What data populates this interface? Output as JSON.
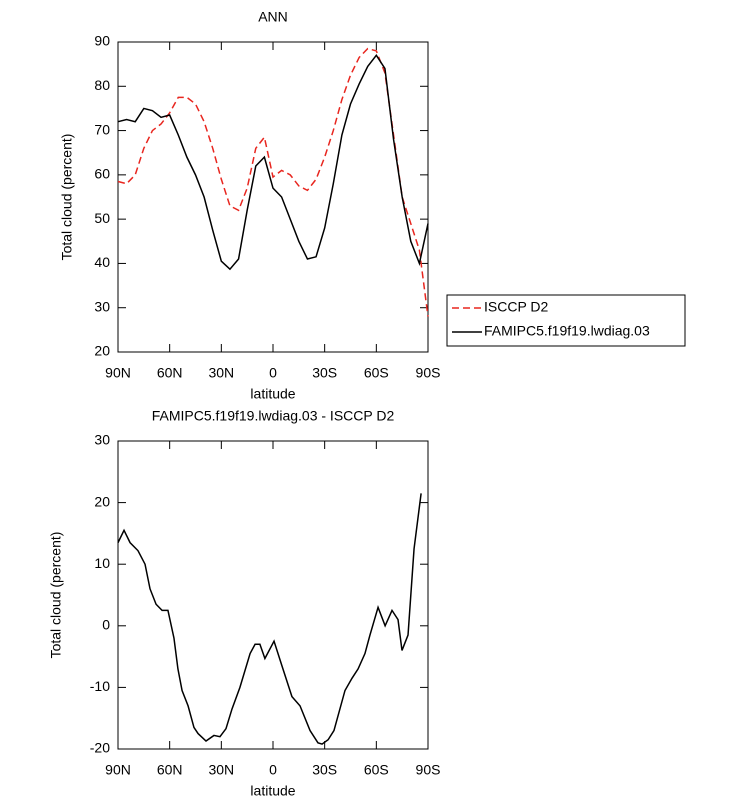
{
  "chart_data": [
    {
      "type": "line",
      "title": "ANN",
      "x_label": "latitude",
      "y_label": "Total cloud (percent)",
      "xlim": [
        90,
        -90
      ],
      "xticks": [
        {
          "value": 90,
          "label": "90N"
        },
        {
          "value": 60,
          "label": "60N"
        },
        {
          "value": 30,
          "label": "30N"
        },
        0,
        {
          "value": -30,
          "label": "30S"
        },
        {
          "value": -60,
          "label": "60S"
        },
        {
          "value": -90,
          "label": "90S"
        }
      ],
      "ylim": [
        20,
        90
      ],
      "yticks": [
        20,
        30,
        40,
        50,
        60,
        70,
        80,
        90
      ],
      "legend": "right",
      "x": [
        90,
        85,
        80,
        75,
        70,
        65,
        60,
        55,
        50,
        45,
        40,
        35,
        30,
        25,
        20,
        15,
        10,
        5,
        0,
        -5,
        -10,
        -15,
        -20,
        -25,
        -30,
        -35,
        -40,
        -45,
        -50,
        -55,
        -60,
        -65,
        -70,
        -75,
        -80,
        -85,
        -90
      ],
      "series": [
        {
          "name": "ISCCP D2",
          "color": "#e8261f",
          "style": "dashed",
          "values": [
            58.5,
            58,
            60,
            66,
            70,
            71.5,
            74,
            77.5,
            77.5,
            76,
            72,
            66,
            59,
            53,
            52,
            57,
            66,
            68.5,
            59.5,
            61,
            60,
            57.5,
            56.5,
            59,
            64,
            70,
            77,
            82.5,
            86.5,
            88.5,
            88,
            83,
            69,
            55,
            49,
            43,
            28
          ]
        },
        {
          "name": "FAMIPC5.f19f19.lwdiag.03",
          "color": "#000000",
          "style": "solid",
          "values": [
            72,
            72.5,
            72,
            75,
            74.5,
            73,
            73.5,
            69,
            64,
            60,
            55,
            47.5,
            40.5,
            38.7,
            41,
            52,
            62,
            64,
            57,
            55,
            50,
            45,
            41,
            41.5,
            48,
            58,
            69,
            76,
            80.5,
            84.5,
            87,
            84,
            68,
            55,
            45,
            40,
            49
          ]
        }
      ]
    },
    {
      "type": "line",
      "title": "FAMIPC5.f19f19.lwdiag.03 - ISCCP D2",
      "x_label": "latitude",
      "y_label": "Total cloud (percent)",
      "xlim": [
        90,
        -90
      ],
      "xticks": [
        {
          "value": 90,
          "label": "90N"
        },
        {
          "value": 60,
          "label": "60N"
        },
        {
          "value": 30,
          "label": "30N"
        },
        0,
        {
          "value": -30,
          "label": "30S"
        },
        {
          "value": -60,
          "label": "60S"
        },
        {
          "value": -90,
          "label": "90S"
        }
      ],
      "ylim": [
        -20,
        30
      ],
      "yticks": [
        -20,
        -10,
        0,
        10,
        20,
        30
      ],
      "x": [
        90,
        86.5,
        83,
        78.4,
        74.3,
        71.4,
        67.9,
        64.4,
        61,
        57.5,
        55.2,
        52.8,
        49.3,
        45.9,
        43.5,
        38.9,
        34.3,
        30.8,
        27.3,
        23.8,
        19.2,
        13.3,
        10.4,
        7.6,
        4.7,
        -0.6,
        -5.2,
        -11,
        -15.7,
        -21.5,
        -26.1,
        -28.5,
        -32,
        -35.4,
        -41.8,
        -45.9,
        -49.4,
        -53.4,
        -56.3,
        -61,
        -65.1,
        -69.1,
        -72.6,
        -74.9,
        -78.4,
        -81.9,
        -86
      ],
      "series": [
        {
          "color": "#000000",
          "style": "solid",
          "values": [
            13.5,
            15.5,
            13.5,
            12.2,
            10,
            6,
            3.5,
            2.5,
            2.5,
            -2,
            -7,
            -10.5,
            -13,
            -16.5,
            -17.5,
            -18.7,
            -17.8,
            -18,
            -16.7,
            -13.5,
            -10,
            -4.5,
            -3,
            -3,
            -5.3,
            -2.5,
            -6.5,
            -11.5,
            -13,
            -17,
            -19,
            -19.2,
            -18.5,
            -17,
            -10.5,
            -8.5,
            -7,
            -4.5,
            -1.5,
            3,
            0,
            2.5,
            1,
            -4,
            -1.5,
            12.5,
            21.5
          ]
        }
      ]
    }
  ]
}
